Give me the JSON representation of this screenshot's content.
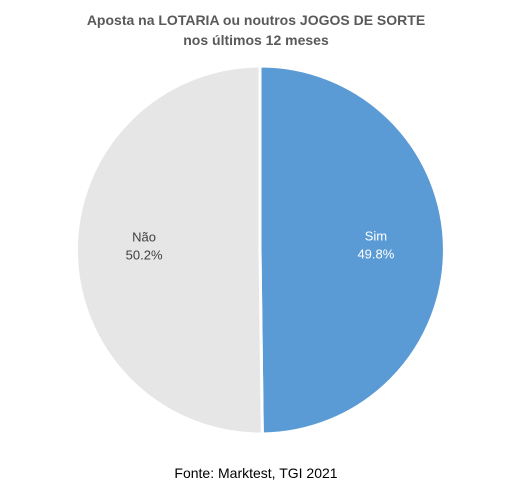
{
  "chart_data": {
    "type": "pie",
    "title": "Aposta na LOTARIA ou noutros JOGOS DE SORTE",
    "subtitle": "nos últimos 12 meses",
    "slices": [
      {
        "label": "Sim",
        "value": 49.8,
        "value_label": "49.8%",
        "color": "#5B9BD5",
        "text_color": "#FFFFFF"
      },
      {
        "label": "Não",
        "value": 50.2,
        "value_label": "50.2%",
        "color": "#E7E6E6",
        "text_color": "#404040"
      }
    ]
  },
  "footer": {
    "source": "Fonte: Marktest, TGI 2021"
  }
}
